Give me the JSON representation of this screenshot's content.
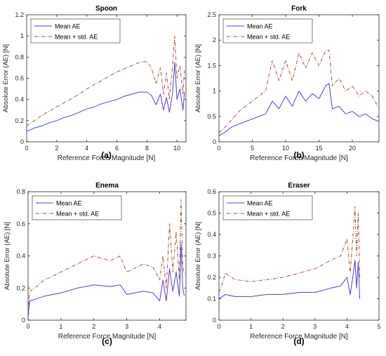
{
  "figure": {
    "colors": {
      "mean": "#4a3fe0",
      "std": "#a0522d",
      "axis": "#262626",
      "background": "#ffffff"
    },
    "legend_labels": [
      "Mean AE",
      "Mean + std. AE"
    ]
  },
  "chart_data": [
    {
      "panel": "(a)",
      "type": "line",
      "title": "Spoon",
      "xlabel": "Reference Force Magnitude [N]",
      "ylabel": "Absolute Error (AE) [N]",
      "xlim": [
        0,
        10.6
      ],
      "ylim": [
        0,
        1.2
      ],
      "xticks": [
        0,
        2,
        4,
        6,
        8,
        10
      ],
      "yticks": [
        0,
        0.2,
        0.4,
        0.6,
        0.8,
        1,
        1.2
      ],
      "xtick_labels": [
        "0",
        "2",
        "4",
        "6",
        "8",
        "10"
      ],
      "ytick_labels": [
        "0",
        "0.2",
        "0.4",
        "0.6",
        "0.8",
        "1",
        "1.2"
      ],
      "legend": "top-left",
      "grid": false,
      "series": [
        {
          "name": "Mean AE",
          "style": "solid",
          "x": [
            0,
            0.5,
            1,
            1.5,
            2,
            2.5,
            3,
            3.5,
            4,
            4.5,
            5,
            5.5,
            6,
            6.5,
            7,
            7.5,
            8,
            8.3,
            8.6,
            8.9,
            9.1,
            9.3,
            9.5,
            9.7,
            9.85,
            10,
            10.2,
            10.4,
            10.5
          ],
          "y": [
            0.1,
            0.13,
            0.15,
            0.18,
            0.2,
            0.23,
            0.25,
            0.28,
            0.31,
            0.33,
            0.36,
            0.38,
            0.4,
            0.43,
            0.45,
            0.47,
            0.47,
            0.44,
            0.35,
            0.45,
            0.3,
            0.42,
            0.28,
            0.45,
            0.75,
            0.4,
            0.5,
            0.3,
            0.47
          ]
        },
        {
          "name": "Mean + std. AE",
          "style": "dashdot",
          "x": [
            0,
            0.5,
            1,
            1.5,
            2,
            2.5,
            3,
            3.5,
            4,
            4.5,
            5,
            5.5,
            6,
            6.5,
            7,
            7.5,
            8,
            8.3,
            8.6,
            8.9,
            9.1,
            9.3,
            9.5,
            9.7,
            9.85,
            10,
            10.2,
            10.4,
            10.5
          ],
          "y": [
            0.15,
            0.2,
            0.25,
            0.29,
            0.33,
            0.37,
            0.41,
            0.45,
            0.5,
            0.54,
            0.58,
            0.62,
            0.66,
            0.69,
            0.72,
            0.75,
            0.76,
            0.7,
            0.55,
            0.7,
            0.45,
            0.65,
            0.4,
            0.7,
            1.0,
            0.6,
            0.72,
            0.45,
            0.68
          ]
        }
      ]
    },
    {
      "panel": "(b)",
      "type": "line",
      "title": "Fork",
      "xlabel": "Reference Force Magnitude [N]",
      "ylabel": "Absolute Error (AE) [N]",
      "xlim": [
        0,
        24
      ],
      "ylim": [
        0,
        2.5
      ],
      "xticks": [
        0,
        5,
        10,
        15,
        20
      ],
      "yticks": [
        0,
        0.5,
        1,
        1.5,
        2,
        2.5
      ],
      "xtick_labels": [
        "0",
        "5",
        "10",
        "15",
        "20"
      ],
      "ytick_labels": [
        "0",
        "0.5",
        "1",
        "1.5",
        "2",
        "2.5"
      ],
      "legend": "top-left",
      "grid": false,
      "series": [
        {
          "name": "Mean AE",
          "style": "solid",
          "x": [
            0,
            1,
            2,
            3,
            4,
            5,
            6,
            7,
            8,
            9,
            10,
            11,
            12,
            13,
            14,
            15,
            16,
            16.5,
            17,
            18,
            19,
            20,
            21,
            22,
            23,
            24
          ],
          "y": [
            0.12,
            0.2,
            0.3,
            0.35,
            0.4,
            0.45,
            0.5,
            0.55,
            0.8,
            0.65,
            0.9,
            0.7,
            1.0,
            0.8,
            0.95,
            0.85,
            1.1,
            1.15,
            0.65,
            0.7,
            0.55,
            0.6,
            0.5,
            0.55,
            0.45,
            0.4
          ]
        },
        {
          "name": "Mean + std. AE",
          "style": "dashdot",
          "x": [
            0,
            1,
            2,
            3,
            4,
            5,
            6,
            7,
            8,
            9,
            10,
            11,
            12,
            13,
            14,
            15,
            16,
            16.5,
            17,
            18,
            19,
            20,
            21,
            22,
            23,
            24
          ],
          "y": [
            0.18,
            0.3,
            0.45,
            0.6,
            0.7,
            0.8,
            0.9,
            1.0,
            1.6,
            1.2,
            1.6,
            1.2,
            1.75,
            1.45,
            1.75,
            1.5,
            1.8,
            1.8,
            1.1,
            1.25,
            1.0,
            1.1,
            0.9,
            1.0,
            0.9,
            0.65
          ]
        }
      ]
    },
    {
      "panel": "(c)",
      "type": "line",
      "title": "Enema",
      "xlabel": "Reference Force Magnitude [N]",
      "ylabel": "Absolute Error (AE) [N]",
      "xlim": [
        0,
        4.8
      ],
      "ylim": [
        0,
        0.8
      ],
      "xticks": [
        0,
        1,
        2,
        3,
        4
      ],
      "yticks": [
        0,
        0.2,
        0.4,
        0.6,
        0.8
      ],
      "xtick_labels": [
        "0",
        "1",
        "2",
        "3",
        "4"
      ],
      "ytick_labels": [
        "0",
        "0.2",
        "0.4",
        "0.6",
        "0.8"
      ],
      "legend": "top-left",
      "grid": false,
      "series": [
        {
          "name": "Mean AE",
          "style": "solid",
          "x": [
            0,
            0.05,
            0.2,
            0.5,
            1,
            1.5,
            2,
            2.5,
            2.8,
            3,
            3.5,
            3.8,
            4,
            4.1,
            4.2,
            4.3,
            4.4,
            4.5,
            4.6,
            4.65,
            4.7,
            4.75
          ],
          "y": [
            0.02,
            0.12,
            0.13,
            0.15,
            0.17,
            0.2,
            0.22,
            0.21,
            0.22,
            0.16,
            0.18,
            0.17,
            0.12,
            0.25,
            0.12,
            0.32,
            0.18,
            0.3,
            0.15,
            0.48,
            0.2,
            0.15
          ]
        },
        {
          "name": "Mean + std. AE",
          "style": "dashdot",
          "x": [
            0,
            0.05,
            0.2,
            0.5,
            1,
            1.5,
            2,
            2.5,
            2.8,
            3,
            3.5,
            3.8,
            4,
            4.1,
            4.2,
            4.3,
            4.4,
            4.5,
            4.6,
            4.65,
            4.7,
            4.75
          ],
          "y": [
            0.05,
            0.18,
            0.2,
            0.25,
            0.3,
            0.35,
            0.4,
            0.37,
            0.4,
            0.3,
            0.35,
            0.33,
            0.25,
            0.4,
            0.2,
            0.6,
            0.3,
            0.55,
            0.25,
            0.75,
            0.35,
            0.28
          ]
        }
      ]
    },
    {
      "panel": "(d)",
      "type": "line",
      "title": "Eraser",
      "xlabel": "Reference Force Magnitude [N]",
      "ylabel": "Absolute Error (AE) [N]",
      "xlim": [
        0,
        5
      ],
      "ylim": [
        0,
        0.6
      ],
      "xticks": [
        0,
        1,
        2,
        3,
        4,
        5
      ],
      "yticks": [
        0,
        0.1,
        0.2,
        0.3,
        0.4,
        0.5,
        0.6
      ],
      "xtick_labels": [
        "0",
        "1",
        "2",
        "3",
        "4",
        "5"
      ],
      "ytick_labels": [
        "0",
        "0.1",
        "0.2",
        "0.3",
        "0.4",
        "0.5",
        "0.6"
      ],
      "legend": "top-left",
      "grid": false,
      "series": [
        {
          "name": "Mean AE",
          "style": "solid",
          "x": [
            0,
            0.1,
            0.2,
            0.5,
            1,
            1.5,
            2,
            2.5,
            3,
            3.5,
            3.8,
            4,
            4.1,
            4.2,
            4.25,
            4.3,
            4.35,
            4.4
          ],
          "y": [
            0.1,
            0.11,
            0.12,
            0.11,
            0.11,
            0.12,
            0.12,
            0.13,
            0.13,
            0.15,
            0.16,
            0.2,
            0.12,
            0.22,
            0.28,
            0.15,
            0.27,
            0.1
          ]
        },
        {
          "name": "Mean + std. AE",
          "style": "dashdot",
          "x": [
            0,
            0.1,
            0.2,
            0.5,
            1,
            1.5,
            2,
            2.5,
            3,
            3.5,
            3.8,
            4,
            4.1,
            4.2,
            4.25,
            4.3,
            4.35,
            4.4
          ],
          "y": [
            0.13,
            0.17,
            0.22,
            0.19,
            0.18,
            0.19,
            0.2,
            0.22,
            0.24,
            0.28,
            0.3,
            0.38,
            0.22,
            0.42,
            0.53,
            0.3,
            0.5,
            0.2
          ]
        }
      ]
    }
  ]
}
